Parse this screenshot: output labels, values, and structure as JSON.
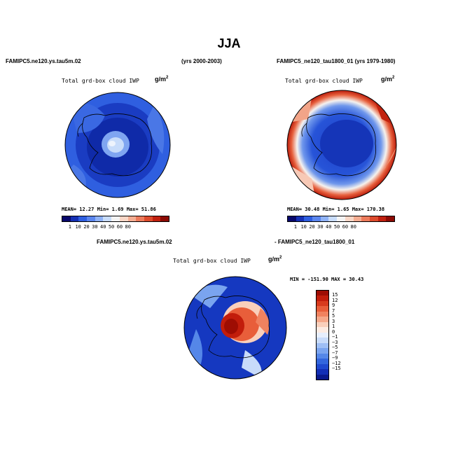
{
  "figure": {
    "title": "JJA"
  },
  "panels": {
    "a": {
      "case_title": "FAMIPC5.ne120.ys.tau5m.02",
      "years": "(yrs 2000-2003)",
      "var_title": "Total grd-box cloud IWP",
      "units": "g/m",
      "units_exp": "2",
      "stats": "MEAN=  12.27  Min=   1.69  Max=  51.86"
    },
    "b": {
      "case_title": "FAMIPC5_ne120_tau1800_01 (yrs 1979-1980)",
      "var_title": "Total grd-box cloud IWP",
      "units": "g/m",
      "units_exp": "2",
      "stats": "MEAN=  30.48  Min=   1.65  Max= 170.38"
    },
    "diff": {
      "case_title_left": "FAMIPC5.ne120.ys.tau5m.02",
      "case_title_right": "- FAMIPC5_ne120_tau1800_01",
      "var_title": "Total grd-box cloud IWP",
      "units": "g/m",
      "units_exp": "2",
      "stats": "MIN = -151.90  MAX =  30.43"
    }
  },
  "chart_data": [
    {
      "type": "heatmap",
      "projection": "south polar stereographic",
      "title": "Total grd-box cloud IWP",
      "units": "g/m2",
      "stats": {
        "mean": 12.27,
        "min": 1.69,
        "max": 51.86
      },
      "colorbar": {
        "levels": [
          "1",
          "10",
          "20",
          "30",
          "40",
          "50",
          "60",
          "80"
        ],
        "colors": [
          "#08086b",
          "#1530b4",
          "#2f5fe0",
          "#5b86ee",
          "#8fb2f5",
          "#c8dcfa",
          "#f4f4f4",
          "#f9d7c7",
          "#f4ad92",
          "#ec7a5b",
          "#dc4a2c",
          "#c0200f",
          "#8c0a04"
        ]
      }
    },
    {
      "type": "heatmap",
      "projection": "south polar stereographic",
      "title": "Total grd-box cloud IWP",
      "units": "g/m2",
      "stats": {
        "mean": 30.48,
        "min": 1.65,
        "max": 170.38
      },
      "colorbar": {
        "levels": [
          "1",
          "10",
          "20",
          "30",
          "40",
          "50",
          "60",
          "80"
        ],
        "colors": [
          "#08086b",
          "#1530b4",
          "#2f5fe0",
          "#5b86ee",
          "#8fb2f5",
          "#c8dcfa",
          "#f4f4f4",
          "#f9d7c7",
          "#f4ad92",
          "#ec7a5b",
          "#dc4a2c",
          "#c0200f",
          "#8c0a04"
        ]
      }
    },
    {
      "type": "heatmap",
      "projection": "south polar stereographic",
      "title": "Total grd-box cloud IWP",
      "units": "g/m2",
      "stats": {
        "min": -151.9,
        "max": 30.43
      },
      "colorbar": {
        "orientation": "vertical",
        "levels": [
          "15",
          "12",
          "9",
          "7",
          "5",
          "3",
          "1",
          "0",
          "-1",
          "-3",
          "-5",
          "-7",
          "-9",
          "-12",
          "-15"
        ],
        "colors": [
          "#9e0d03",
          "#c21d0b",
          "#d83a1d",
          "#e85e3a",
          "#f0825f",
          "#f5a88a",
          "#f9cfbb",
          "#fcebe2",
          "#e6eefc",
          "#c8dbfa",
          "#9fbff5",
          "#7aa4ef",
          "#5587e8",
          "#3366dd",
          "#1f49cf",
          "#132fb6",
          "#0a1a8c"
        ]
      }
    }
  ]
}
